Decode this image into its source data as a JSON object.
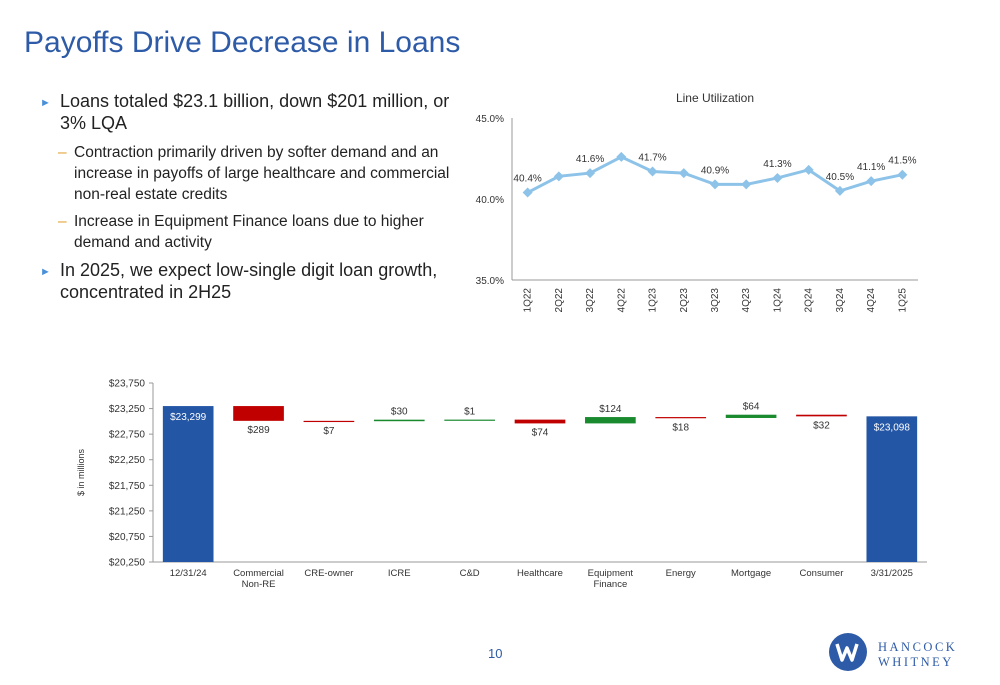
{
  "title": "Payoffs Drive Decrease in Loans",
  "bullets": [
    {
      "text": "Loans totaled $23.1 billion, down $201 million, or 3% LQA",
      "sub": [
        "Contraction primarily driven by softer demand and an increase in payoffs of large healthcare and commercial non-real estate credits",
        "Increase in Equipment Finance loans due to higher demand and activity"
      ]
    },
    {
      "text": "In 2025, we expect low-single digit loan growth, concentrated in 2H25",
      "sub": []
    }
  ],
  "page_number": "10",
  "logo": {
    "line1": "HANCOCK",
    "line2": "WHITNEY",
    "color": "#2e5ba7"
  },
  "chart_data": [
    {
      "type": "line",
      "title": "Line Utilization",
      "categories": [
        "1Q22",
        "2Q22",
        "3Q22",
        "4Q22",
        "1Q23",
        "2Q23",
        "3Q23",
        "4Q23",
        "1Q24",
        "2Q24",
        "3Q24",
        "4Q24",
        "1Q25"
      ],
      "values": [
        40.4,
        41.4,
        41.6,
        42.6,
        41.7,
        41.6,
        40.9,
        40.9,
        41.3,
        41.8,
        40.5,
        41.1,
        41.5
      ],
      "data_labels": [
        "40.4%",
        "",
        "41.6%",
        "",
        "41.7%",
        "",
        "40.9%",
        "",
        "41.3%",
        "",
        "40.5%",
        "41.1%",
        "41.5%"
      ],
      "yticks": [
        "35.0%",
        "40.0%",
        "45.0%"
      ],
      "ylim": [
        35,
        45
      ],
      "grid": false,
      "color": "#8dc3e8"
    },
    {
      "type": "bar",
      "subtype": "waterfall",
      "ylabel": "$ in millions",
      "categories": [
        "12/31/24",
        "Commercial Non-RE",
        "CRE-owner",
        "ICRE",
        "C&D",
        "Healthcare",
        "Equipment Finance",
        "Energy",
        "Mortgage",
        "Consumer",
        "3/31/2025"
      ],
      "bars": [
        {
          "start": 0,
          "end": 23299,
          "kind": "total",
          "label": "$23,299"
        },
        {
          "start": 23299,
          "end": 23010,
          "kind": "decrease",
          "label": "$289"
        },
        {
          "start": 23010,
          "end": 23003,
          "kind": "decrease",
          "label": "$7"
        },
        {
          "start": 23003,
          "end": 23033,
          "kind": "increase",
          "label": "$30"
        },
        {
          "start": 23033,
          "end": 23034,
          "kind": "increase",
          "label": "$1"
        },
        {
          "start": 23034,
          "end": 22960,
          "kind": "decrease",
          "label": "$74"
        },
        {
          "start": 22960,
          "end": 23084,
          "kind": "increase",
          "label": "$124"
        },
        {
          "start": 23084,
          "end": 23066,
          "kind": "decrease",
          "label": "$18"
        },
        {
          "start": 23066,
          "end": 23130,
          "kind": "increase",
          "label": "$64"
        },
        {
          "start": 23130,
          "end": 23098,
          "kind": "decrease",
          "label": "$32"
        },
        {
          "start": 0,
          "end": 23098,
          "kind": "total",
          "label": "$23,098"
        }
      ],
      "yticks": [
        "$20,250",
        "$20,750",
        "$21,250",
        "$21,750",
        "$22,250",
        "$22,750",
        "$23,250",
        "$23,750"
      ],
      "ylim": [
        20250,
        23750
      ],
      "colors": {
        "total": "#2456a6",
        "increase": "#1a8a2e",
        "decrease": "#c00000"
      }
    }
  ]
}
